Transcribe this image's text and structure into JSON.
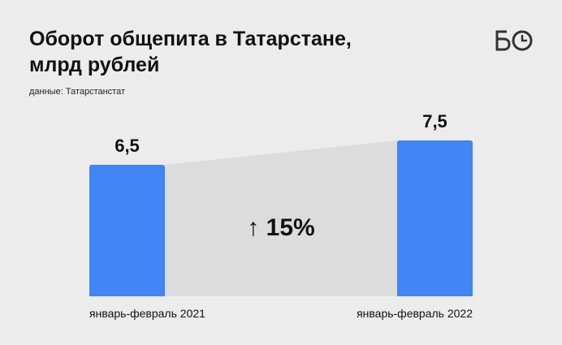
{
  "title_lines": [
    "Оборот общепита в Татарстане,",
    "млрд рублей"
  ],
  "source": "данные: Татарстанстат",
  "logo_alt": "БО",
  "colors": {
    "bar": "#4285f4",
    "connector": "#dcdcdc",
    "background": "#ececec"
  },
  "chart_data": {
    "type": "bar",
    "categories": [
      "январь-февраль 2021",
      "январь-февраль 2022"
    ],
    "values": [
      6.5,
      7.5
    ],
    "value_labels": [
      "6,5",
      "7,5"
    ],
    "change_label": "↑ 15%",
    "title": "Оборот общепита в Татарстане, млрд рублей",
    "xlabel": "",
    "ylabel": "",
    "grid": false
  }
}
